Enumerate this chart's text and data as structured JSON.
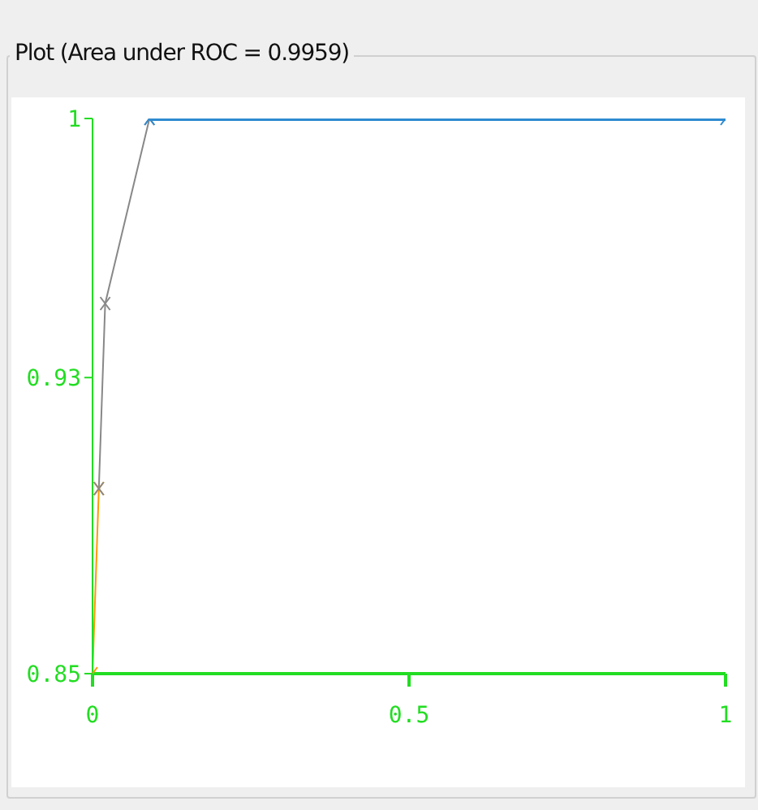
{
  "chart_data": {
    "type": "line",
    "title": "Plot (Area under ROC = 0.9959)",
    "marker": "cross",
    "grid": false,
    "legend": false,
    "xlim": [
      0,
      1
    ],
    "xticks": [
      0,
      0.5,
      1
    ],
    "ylim": [
      0.85,
      1
    ],
    "yticks": [
      0.85,
      0.93,
      1
    ],
    "series": [
      {
        "color": "#ff9900",
        "x": [
          0,
          0.01
        ],
        "values": [
          0.85,
          0.9
        ]
      },
      {
        "color": "#888888",
        "x": [
          0.01,
          0.02,
          0.09
        ],
        "values": [
          0.9,
          0.95,
          1
        ]
      },
      {
        "color": "#2e8bd0",
        "x": [
          0.09,
          1
        ],
        "values": [
          1,
          1
        ]
      }
    ]
  }
}
